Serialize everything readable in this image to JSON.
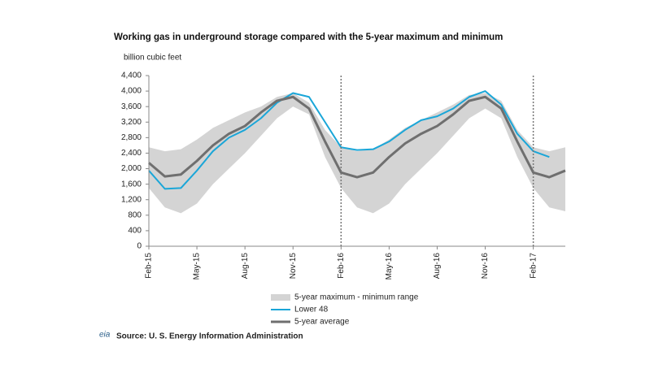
{
  "chart_data": {
    "type": "line",
    "title": "Working gas in underground storage compared with the 5-year maximum and minimum",
    "y_label": "billion cubic feet",
    "source": "Source:  U. S. Energy Information Administration",
    "logo": "eia",
    "categories": [
      "Feb-15",
      null,
      null,
      "May-15",
      null,
      null,
      "Aug-15",
      null,
      null,
      "Nov-15",
      null,
      null,
      "Feb-16",
      null,
      null,
      "May-16",
      null,
      null,
      "Aug-16",
      null,
      null,
      "Nov-16",
      null,
      null,
      "Feb-17",
      null,
      null
    ],
    "ylim": [
      0,
      4400
    ],
    "yticks": [
      0,
      400,
      800,
      {
        "value": 1200,
        "label": "1,200"
      },
      {
        "value": 1600,
        "label": "1,600"
      },
      {
        "value": 2000,
        "label": "2,000"
      },
      {
        "value": 2400,
        "label": "2,400"
      },
      {
        "value": 2800,
        "label": "2,800"
      },
      {
        "value": 3200,
        "label": "3,200"
      },
      {
        "value": 3600,
        "label": "3,600"
      },
      {
        "value": 4000,
        "label": "4,000"
      },
      {
        "value": 4400,
        "label": "4,400"
      }
    ],
    "series": [
      {
        "name": "5-year maximum - minimum range",
        "type": "band",
        "color": "#d4d4d4",
        "values": [
          2550,
          2450,
          2500,
          2750,
          3050,
          3250,
          3450,
          3600,
          3850,
          3950,
          3700,
          3000,
          2550,
          2450,
          2500,
          2750,
          3050,
          3250,
          3450,
          3650,
          3900,
          3950,
          3750,
          3000,
          2550,
          2450,
          2550
        ],
        "lower": [
          1500,
          1000,
          850,
          1100,
          1600,
          2000,
          2400,
          2850,
          3300,
          3600,
          3400,
          2300,
          1500,
          1000,
          850,
          1100,
          1600,
          2000,
          2400,
          2850,
          3300,
          3550,
          3300,
          2300,
          1500,
          1000,
          900
        ]
      },
      {
        "name": "Lower 48",
        "type": "line",
        "color": "#1aa6d8",
        "values": [
          1950,
          1480,
          1500,
          1950,
          2450,
          2800,
          3000,
          3300,
          3700,
          3950,
          3850,
          3200,
          2550,
          2480,
          2500,
          2700,
          3000,
          3250,
          3350,
          3550,
          3850,
          4000,
          3650,
          2900,
          2450,
          2300,
          null
        ]
      },
      {
        "name": "5-year average",
        "type": "line",
        "color": "#6f6f6f",
        "values": [
          2150,
          1800,
          1850,
          2200,
          2600,
          2900,
          3100,
          3450,
          3750,
          3850,
          3550,
          2700,
          1900,
          1780,
          1900,
          2300,
          2650,
          2900,
          3100,
          3400,
          3750,
          3850,
          3550,
          2700,
          1900,
          1780,
          1950
        ]
      }
    ]
  }
}
